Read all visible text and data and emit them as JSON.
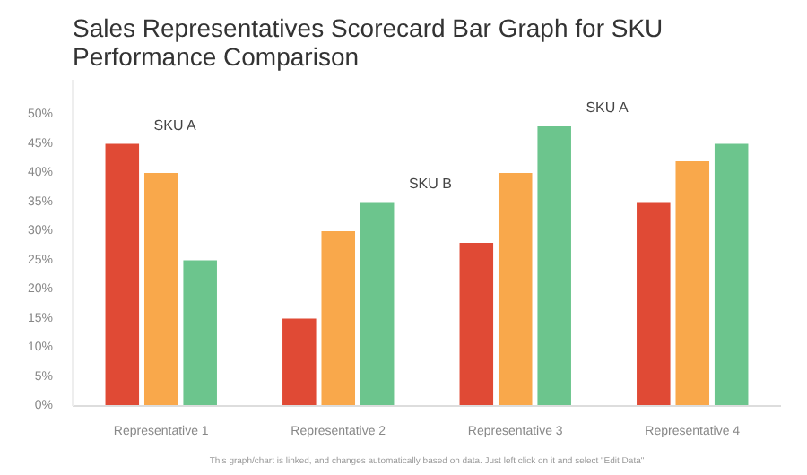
{
  "chart_data": {
    "type": "bar",
    "title": "Sales Representatives Scorecard Bar Graph for SKU Performance Comparison",
    "categories": [
      "Representative 1",
      "Representative 2",
      "Representative 3",
      "Representative 4"
    ],
    "series": [
      {
        "color": "#e04a35",
        "values": [
          45,
          15,
          28,
          35
        ]
      },
      {
        "color": "#f9a84b",
        "values": [
          40,
          30,
          40,
          42
        ]
      },
      {
        "color": "#6cc58d",
        "values": [
          25,
          35,
          48,
          45
        ]
      }
    ],
    "ylim": [
      0,
      56
    ],
    "yticks": [
      {
        "value": 0,
        "label": "0%"
      },
      {
        "value": 5,
        "label": "5%"
      },
      {
        "value": 10,
        "label": "10%"
      },
      {
        "value": 15,
        "label": "15%"
      },
      {
        "value": 20,
        "label": "20%"
      },
      {
        "value": 25,
        "label": "25%"
      },
      {
        "value": 30,
        "label": "30%"
      },
      {
        "value": 35,
        "label": "35%"
      },
      {
        "value": 40,
        "label": "40%"
      },
      {
        "value": 45,
        "label": "45%"
      },
      {
        "value": 50,
        "label": "50%"
      }
    ],
    "grid": false,
    "annotations": [
      "SKU A",
      "SKU B",
      "SKU A",
      "This graph/chart is linked, and changes automatically based on data. Just left click on it and select \"Edit Data\""
    ]
  }
}
